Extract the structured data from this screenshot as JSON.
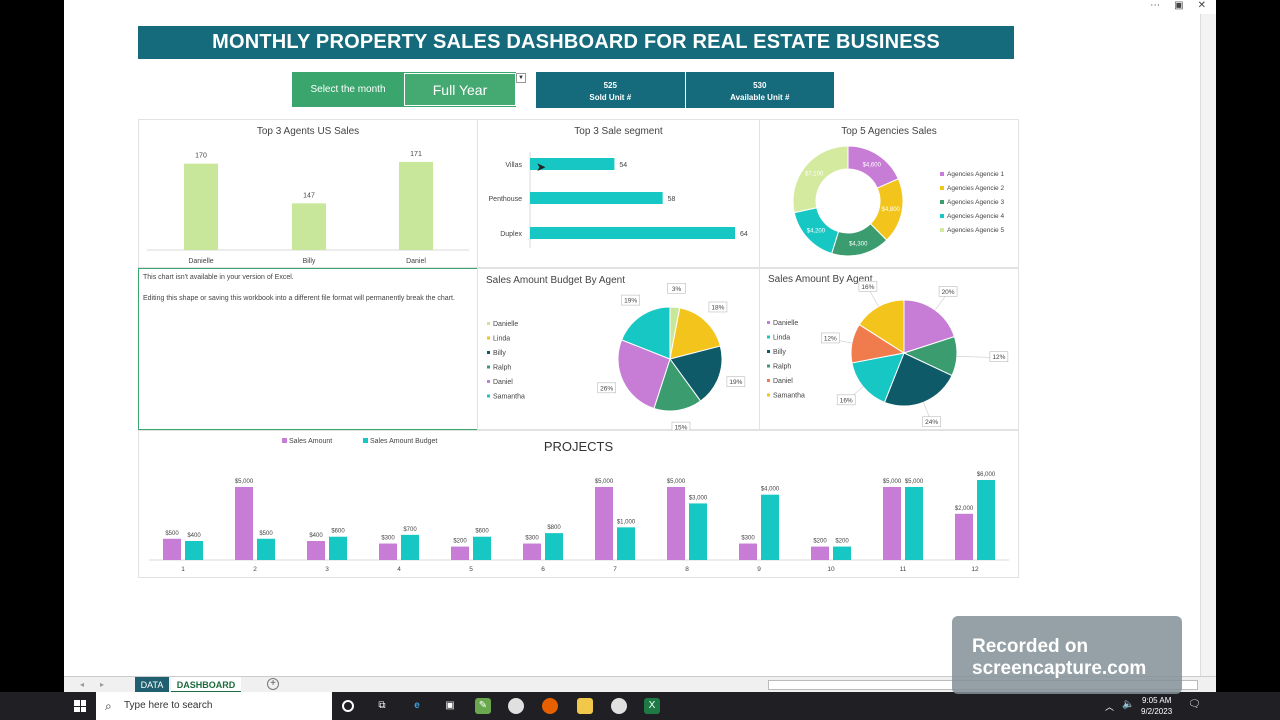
{
  "window": {
    "controls": [
      "⋯",
      "▣",
      "✕"
    ]
  },
  "banner": {
    "title": "MONTHLY PROPERTY SALES DASHBOARD FOR REAL ESTATE BUSINESS"
  },
  "month_selector": {
    "label": "Select the month",
    "value": "Full Year"
  },
  "kpis": [
    {
      "value": "525",
      "label": "Sold Unit #"
    },
    {
      "value": "530",
      "label": "Available Unit #"
    }
  ],
  "colors": {
    "teal_dark": "#156b7c",
    "green": "#3aa66d",
    "light_green_bar": "#c9e79a",
    "cyan": "#17c7c4",
    "purple": "#c77dd6",
    "yellow": "#f3c51c",
    "navy_teal": "#0f5a68",
    "green_slice": "#3a9c6f",
    "orange": "#f07c4e",
    "pale_green": "#d4ea9e"
  },
  "chart_data": [
    {
      "type": "bar",
      "title": "Top 3 Agents US Sales",
      "categories": [
        "Danielle",
        "Billy",
        "Daniel"
      ],
      "values": [
        170,
        147,
        171
      ],
      "ylim": [
        120,
        175
      ]
    },
    {
      "type": "bar",
      "orientation": "horizontal",
      "title": "Top 3 Sale segment",
      "categories": [
        "Villas",
        "Penthouse",
        "Duplex"
      ],
      "values": [
        54,
        58,
        64
      ],
      "xlim": [
        48,
        64
      ]
    },
    {
      "type": "pie",
      "donut": true,
      "title": "Top 5 Agencies Sales",
      "labels": [
        "Agencies Agencie 1",
        "Agencies Agencie 2",
        "Agencies Agencie 3",
        "Agencies Agencie 4",
        "Agencies Agencie 5"
      ],
      "values": [
        4600,
        4800,
        4300,
        4200,
        7100
      ],
      "value_labels": [
        "$4,600",
        "$4,800",
        "$4,300",
        "$4,200",
        "$7,100"
      ],
      "colors": [
        "#c77dd6",
        "#f3c51c",
        "#3a9c6f",
        "#17c7c4",
        "#d4ea9e"
      ]
    },
    {
      "type": "pie",
      "title": "Sales Amount Budget By Agent",
      "labels": [
        "Danielle",
        "Linda",
        "Billy",
        "Ralph",
        "Daniel",
        "Samantha"
      ],
      "values": [
        3,
        18,
        19,
        15,
        26,
        19
      ],
      "value_labels": [
        "3%",
        "18%",
        "19%",
        "15%",
        "26%",
        "19%"
      ],
      "colors": [
        "#c9e79a",
        "#f3c51c",
        "#0f5a68",
        "#3a9c6f",
        "#c77dd6",
        "#17c7c4"
      ]
    },
    {
      "type": "pie",
      "title": "Sales Amount By Agent",
      "labels": [
        "Danielle",
        "Linda",
        "Billy",
        "Ralph",
        "Daniel",
        "Samantha"
      ],
      "slice_order": [
        "Daniel",
        "Ralph",
        "Billy",
        "Samantha",
        "Danielle_orange",
        "Linda"
      ],
      "values": [
        20,
        12,
        24,
        16,
        12,
        16
      ],
      "value_labels": [
        "20%",
        "12%",
        "24%",
        "16%",
        "12%",
        "16%"
      ],
      "colors": [
        "#c77dd6",
        "#3a9c6f",
        "#0f5a68",
        "#17c7c4",
        "#f07c4e",
        "#f3c51c"
      ],
      "legend_colors": [
        "#c77dd6",
        "#17c7c4",
        "#0f5a68",
        "#3a9c6f",
        "#f07c4e",
        "#f3c51c"
      ]
    },
    {
      "type": "bar",
      "title": "PROJECTS",
      "categories": [
        "1",
        "2",
        "3",
        "4",
        "5",
        "6",
        "7",
        "8",
        "9",
        "10",
        "11",
        "12"
      ],
      "series": [
        {
          "name": "Sales Amount",
          "values": [
            500,
            5000,
            400,
            300,
            200,
            300,
            5000,
            5000,
            300,
            200,
            5000,
            2000
          ],
          "labels": [
            "$500",
            "$5,000",
            "$400",
            "$300",
            "$200",
            "$300",
            "$5,000",
            "$5,000",
            "$300",
            "$200",
            "$5,000",
            "$2,000"
          ]
        },
        {
          "name": "Sales Amount Budget",
          "values": [
            400,
            500,
            600,
            700,
            600,
            800,
            1000,
            3000,
            4000,
            200,
            5000,
            6000
          ],
          "labels": [
            "$400",
            "$500",
            "$600",
            "$700",
            "$600",
            "$800",
            "$1,000",
            "$3,000",
            "$4,000",
            "$200",
            "$5,000",
            "$6,000"
          ]
        }
      ],
      "legend": "top-left"
    }
  ],
  "notice": {
    "line1": "This chart isn't available in your version of Excel.",
    "line2": "Editing this shape or saving this workbook into a different file format will permanently break the chart."
  },
  "sheet_tabs": [
    "DATA",
    "DASHBOARD"
  ],
  "taskbar": {
    "search_placeholder": "Type here to search",
    "time": "9:05 AM",
    "date": "9/2/2023"
  },
  "watermark": {
    "line1": "Recorded on",
    "line2": "screencapture.com"
  }
}
